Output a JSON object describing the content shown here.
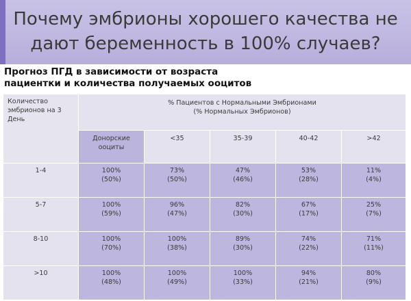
{
  "title": {
    "line1": "Почему эмбрионы хорошего качества не",
    "line2": "дают беременность в 100% случаев?"
  },
  "subtitle": {
    "line1": "Прогноз ПГД в зависимости от возраста",
    "line2": "пациентки и количества получаемых ооцитов"
  },
  "table": {
    "corner": [
      "Количество",
      "эмбрионов на 3",
      "День"
    ],
    "group_header": [
      "% Пациентов с Нормальными Эмбрионами",
      "(% Нормальных Эмбрионов)"
    ],
    "columns": [
      {
        "label": [
          "Донорские",
          "ооциты"
        ]
      },
      {
        "label": [
          "<35"
        ]
      },
      {
        "label": [
          "35-39"
        ]
      },
      {
        "label": [
          "40-42"
        ]
      },
      {
        "label": [
          ">42"
        ]
      }
    ],
    "rows": [
      {
        "label": "1-4",
        "cells": [
          [
            "100%",
            "(50%)"
          ],
          [
            "73%",
            "(50%)"
          ],
          [
            "47%",
            "(46%)"
          ],
          [
            "53%",
            "(28%)"
          ],
          [
            "11%",
            "(4%)"
          ]
        ]
      },
      {
        "label": "5-7",
        "cells": [
          [
            "100%",
            "(59%)"
          ],
          [
            "96%",
            "(47%)"
          ],
          [
            "82%",
            "(30%)"
          ],
          [
            "67%",
            "(17%)"
          ],
          [
            "25%",
            "(7%)"
          ]
        ]
      },
      {
        "label": "8-10",
        "cells": [
          [
            "100%",
            "(70%)"
          ],
          [
            "100%",
            "(38%)"
          ],
          [
            "89%",
            "(30%)"
          ],
          [
            "74%",
            "(22%)"
          ],
          [
            "71%",
            "(11%)"
          ]
        ]
      },
      {
        "label": ">10",
        "cells": [
          [
            "100%",
            "(48%)"
          ],
          [
            "100%",
            "(49%)"
          ],
          [
            "100%",
            "(33%)"
          ],
          [
            "94%",
            "(21%)"
          ],
          [
            "80%",
            "(9%)"
          ]
        ]
      }
    ]
  },
  "colors": {
    "banner": "#c4bce3",
    "accent": "#7e6fc0",
    "cell": "#bdb6de",
    "header_cell": "#e4e2ee"
  }
}
